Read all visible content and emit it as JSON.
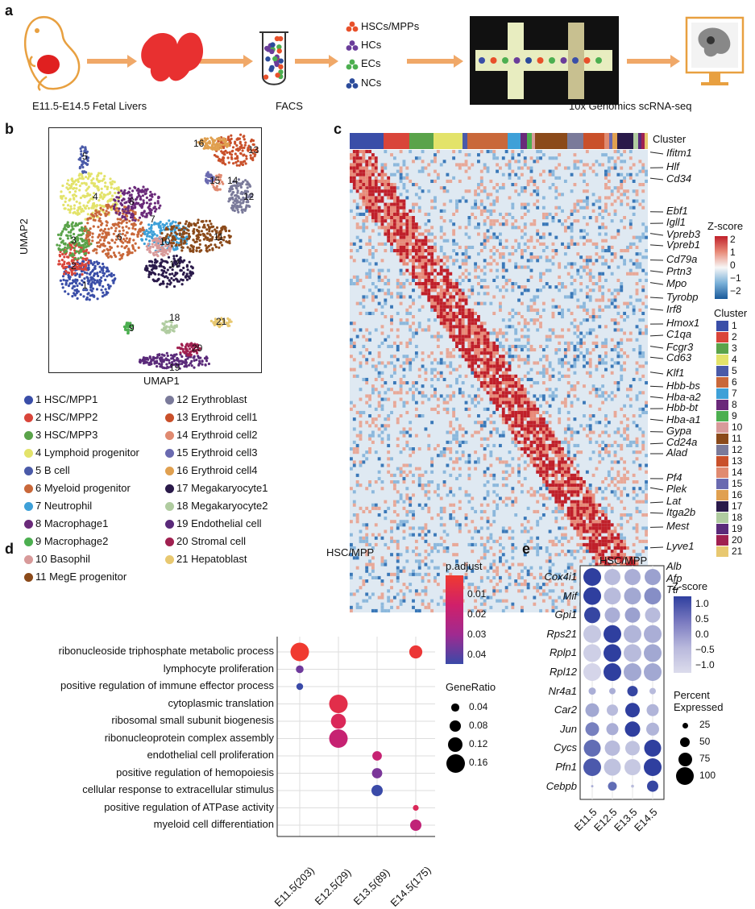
{
  "panels": {
    "a": "a",
    "b": "b",
    "c": "c",
    "d": "d",
    "e": "e"
  },
  "panel_a": {
    "source_label": "E11.5-E14.5 Fetal Livers",
    "facs_label": "FACS",
    "seq_label": "10x Genomics scRNA-seq",
    "sorted_types": [
      {
        "label": "HSCs/MPPs",
        "color": "#e8502a"
      },
      {
        "label": "HCs",
        "color": "#6a3d9a"
      },
      {
        "label": "ECs",
        "color": "#4caf50"
      },
      {
        "label": "NCs",
        "color": "#2b4b9b"
      }
    ]
  },
  "panel_b": {
    "xlabel": "UMAP1",
    "ylabel": "UMAP2",
    "clusters": [
      {
        "id": "1",
        "name": "HSC/MPP1",
        "color": "#3a4ea8"
      },
      {
        "id": "2",
        "name": "HSC/MPP2",
        "color": "#d9453a"
      },
      {
        "id": "3",
        "name": "HSC/MPP3",
        "color": "#5aa34a"
      },
      {
        "id": "4",
        "name": "Lymphoid progenitor",
        "color": "#e3e36a"
      },
      {
        "id": "5",
        "name": "B cell",
        "color": "#4a5aa8"
      },
      {
        "id": "6",
        "name": "Myeloid progenitor",
        "color": "#c9683a"
      },
      {
        "id": "7",
        "name": "Neutrophil",
        "color": "#3ea0d8"
      },
      {
        "id": "8",
        "name": "Macrophage1",
        "color": "#6a2a7a"
      },
      {
        "id": "9",
        "name": "Macrophage2",
        "color": "#4caf50"
      },
      {
        "id": "10",
        "name": "Basophil",
        "color": "#d89a9a"
      },
      {
        "id": "11",
        "name": "MegE progenitor",
        "color": "#8b4a1a"
      },
      {
        "id": "12",
        "name": "Erythroblast",
        "color": "#7a7a9a"
      },
      {
        "id": "13",
        "name": "Erythroid cell1",
        "color": "#c9502a"
      },
      {
        "id": "14",
        "name": "Erythroid cell2",
        "color": "#e08a70"
      },
      {
        "id": "15",
        "name": "Erythroid cell3",
        "color": "#6a6ab0"
      },
      {
        "id": "16",
        "name": "Erythroid cell4",
        "color": "#e0a050"
      },
      {
        "id": "17",
        "name": "Megakaryocyte1",
        "color": "#2a1a4a"
      },
      {
        "id": "18",
        "name": "Megakaryocyte2",
        "color": "#b0cca0"
      },
      {
        "id": "19",
        "name": "Endothelial cell",
        "color": "#5a2a7a"
      },
      {
        "id": "20",
        "name": "Stromal cell",
        "color": "#a02050"
      },
      {
        "id": "21",
        "name": "Hepatoblast",
        "color": "#e8c870"
      }
    ]
  },
  "panel_c": {
    "cluster_title": "Cluster",
    "zscore_title": "Z-score",
    "zscore_ticks": [
      "2",
      "1",
      "0",
      "−1",
      "−2"
    ],
    "legend_title": "Cluster",
    "genes": [
      "Ifitm1",
      "Hlf",
      "Cd34",
      "Ebf1",
      "Igll1",
      "Vpreb3",
      "Vpreb1",
      "Cd79a",
      "Prtn3",
      "Mpo",
      "Tyrobp",
      "Irf8",
      "Hmox1",
      "C1qa",
      "Fcgr3",
      "Cd63",
      "Klf1",
      "Hbb-bs",
      "Hba-a2",
      "Hbb-bt",
      "Hba-a1",
      "Gypa",
      "Cd24a",
      "Alad",
      "Pf4",
      "Plek",
      "Lat",
      "Itga2b",
      "Mest",
      "Lyve1",
      "Alb",
      "Afp",
      "Ttr"
    ]
  },
  "chart_data": [
    {
      "type": "scatter",
      "title": "HSC/MPP",
      "subtype": "GO enrichment dot plot",
      "categories": [
        "E11.5(203)",
        "E12.5(29)",
        "E13.5(89)",
        "E14.5(175)"
      ],
      "terms": [
        "ribonucleoside triphosphate metabolic process",
        "lymphocyte proliferation",
        "positive regulation of immune effector process",
        "cytoplasmic translation",
        "ribosomal small subunit biogenesis",
        "ribonucleoprotein complex assembly",
        "endothelial cell proliferation",
        "positive regulation of hemopoiesis",
        "cellular response to extracellular stimulus",
        "positive regulation of ATPase activity",
        "myeloid cell differentiation"
      ],
      "points": [
        {
          "term": 0,
          "cat": 0,
          "gene_ratio": 0.16,
          "p_adjust": 0.001
        },
        {
          "term": 0,
          "cat": 3,
          "gene_ratio": 0.1,
          "p_adjust": 0.003
        },
        {
          "term": 1,
          "cat": 0,
          "gene_ratio": 0.04,
          "p_adjust": 0.04
        },
        {
          "term": 2,
          "cat": 0,
          "gene_ratio": 0.03,
          "p_adjust": 0.048
        },
        {
          "term": 3,
          "cat": 1,
          "gene_ratio": 0.16,
          "p_adjust": 0.008
        },
        {
          "term": 4,
          "cat": 1,
          "gene_ratio": 0.12,
          "p_adjust": 0.012
        },
        {
          "term": 5,
          "cat": 1,
          "gene_ratio": 0.16,
          "p_adjust": 0.02
        },
        {
          "term": 6,
          "cat": 2,
          "gene_ratio": 0.06,
          "p_adjust": 0.02
        },
        {
          "term": 7,
          "cat": 2,
          "gene_ratio": 0.07,
          "p_adjust": 0.038
        },
        {
          "term": 8,
          "cat": 2,
          "gene_ratio": 0.08,
          "p_adjust": 0.048
        },
        {
          "term": 9,
          "cat": 3,
          "gene_ratio": 0.02,
          "p_adjust": 0.012
        },
        {
          "term": 10,
          "cat": 3,
          "gene_ratio": 0.08,
          "p_adjust": 0.022
        }
      ],
      "color_legend": {
        "title": "p.adjust",
        "ticks": [
          "0.01",
          "0.02",
          "0.03",
          "0.04"
        ]
      },
      "size_legend": {
        "title": "GeneRatio",
        "ticks": [
          "0.04",
          "0.08",
          "0.12",
          "0.16"
        ]
      }
    },
    {
      "type": "scatter",
      "title": "HSC/MPP",
      "subtype": "gene expression dot plot",
      "categories": [
        "E11.5",
        "E12.5",
        "E13.5",
        "E14.5"
      ],
      "genes": [
        "Cox4i1",
        "Mif",
        "Gpi1",
        "Rps21",
        "Rplp1",
        "Rpl12",
        "Nr4a1",
        "Car2",
        "Jun",
        "Cycs",
        "Pfn1",
        "Cebpb"
      ],
      "zscore": [
        [
          1.3,
          -0.6,
          -0.4,
          -0.2
        ],
        [
          1.3,
          -0.6,
          -0.3,
          0.1
        ],
        [
          1.2,
          -0.4,
          -0.2,
          -0.6
        ],
        [
          -0.8,
          1.3,
          -0.5,
          -0.4
        ],
        [
          -0.9,
          1.3,
          -0.6,
          -0.3
        ],
        [
          -1.0,
          1.3,
          -0.3,
          -0.3
        ],
        [
          -0.4,
          -0.4,
          1.2,
          -0.6
        ],
        [
          -0.3,
          -0.6,
          1.3,
          -0.5
        ],
        [
          0.3,
          -0.4,
          1.3,
          -0.5
        ],
        [
          0.6,
          -0.6,
          -0.7,
          1.3
        ],
        [
          0.9,
          -0.7,
          -0.8,
          1.3
        ],
        [
          -0.4,
          0.6,
          -0.6,
          1.2
        ]
      ],
      "percent": [
        [
          100,
          90,
          90,
          90
        ],
        [
          100,
          95,
          95,
          95
        ],
        [
          90,
          85,
          85,
          85
        ],
        [
          100,
          100,
          100,
          100
        ],
        [
          100,
          100,
          100,
          100
        ],
        [
          100,
          100,
          100,
          100
        ],
        [
          35,
          30,
          55,
          30
        ],
        [
          75,
          60,
          80,
          65
        ],
        [
          75,
          65,
          85,
          70
        ],
        [
          95,
          85,
          80,
          95
        ],
        [
          100,
          95,
          90,
          100
        ],
        [
          5,
          45,
          8,
          60
        ]
      ],
      "color_legend": {
        "title": "Z-score",
        "ticks": [
          "1.0",
          "0.5",
          "0.0",
          "−0.5",
          "−1.0"
        ]
      },
      "size_legend": {
        "title_line1": "Percent",
        "title_line2": "Expressed",
        "ticks": [
          "25",
          "50",
          "75",
          "100"
        ]
      }
    }
  ]
}
